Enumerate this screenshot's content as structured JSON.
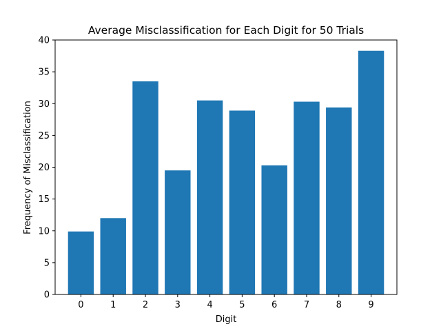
{
  "chart_data": {
    "type": "bar",
    "title": "Average Misclassification for Each Digit for 50 Trials",
    "xlabel": "Digit",
    "ylabel": "Frequency of Misclassification",
    "categories": [
      "0",
      "1",
      "2",
      "3",
      "4",
      "5",
      "6",
      "7",
      "8",
      "9"
    ],
    "values": [
      9.9,
      12.0,
      33.5,
      19.5,
      30.5,
      28.9,
      20.3,
      30.3,
      29.4,
      38.3
    ],
    "ylim": [
      0,
      40
    ],
    "yticks": [
      0,
      5,
      10,
      15,
      20,
      25,
      30,
      35,
      40
    ],
    "bar_color": "#1f77b4",
    "grid": false,
    "legend": "none"
  }
}
